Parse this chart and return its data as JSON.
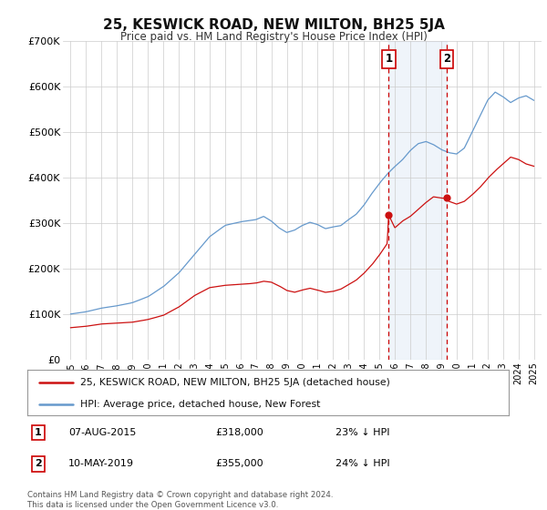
{
  "title": "25, KESWICK ROAD, NEW MILTON, BH25 5JA",
  "subtitle": "Price paid vs. HM Land Registry's House Price Index (HPI)",
  "ylim": [
    0,
    700000
  ],
  "xlim": [
    1994.5,
    2025.5
  ],
  "yticks": [
    0,
    100000,
    200000,
    300000,
    400000,
    500000,
    600000,
    700000
  ],
  "ytick_labels": [
    "£0",
    "£100K",
    "£200K",
    "£300K",
    "£400K",
    "£500K",
    "£600K",
    "£700K"
  ],
  "xticks": [
    1995,
    1996,
    1997,
    1998,
    1999,
    2000,
    2001,
    2002,
    2003,
    2004,
    2005,
    2006,
    2007,
    2008,
    2009,
    2010,
    2011,
    2012,
    2013,
    2014,
    2015,
    2016,
    2017,
    2018,
    2019,
    2020,
    2021,
    2022,
    2023,
    2024,
    2025
  ],
  "legend_label_red": "25, KESWICK ROAD, NEW MILTON, BH25 5JA (detached house)",
  "legend_label_blue": "HPI: Average price, detached house, New Forest",
  "sale1_date": 2015.6,
  "sale1_price": 318000,
  "sale1_label": "07-AUG-2015",
  "sale1_amount": "£318,000",
  "sale1_hpi": "23% ↓ HPI",
  "sale2_date": 2019.36,
  "sale2_price": 355000,
  "sale2_label": "10-MAY-2019",
  "sale2_amount": "£355,000",
  "sale2_hpi": "24% ↓ HPI",
  "shade_color": "#ccddf0",
  "vline_color": "#cc0000",
  "red_line_color": "#cc1111",
  "blue_line_color": "#6699cc",
  "footnote": "Contains HM Land Registry data © Crown copyright and database right 2024.\nThis data is licensed under the Open Government Licence v3.0.",
  "background_color": "#ffffff",
  "grid_color": "#cccccc"
}
